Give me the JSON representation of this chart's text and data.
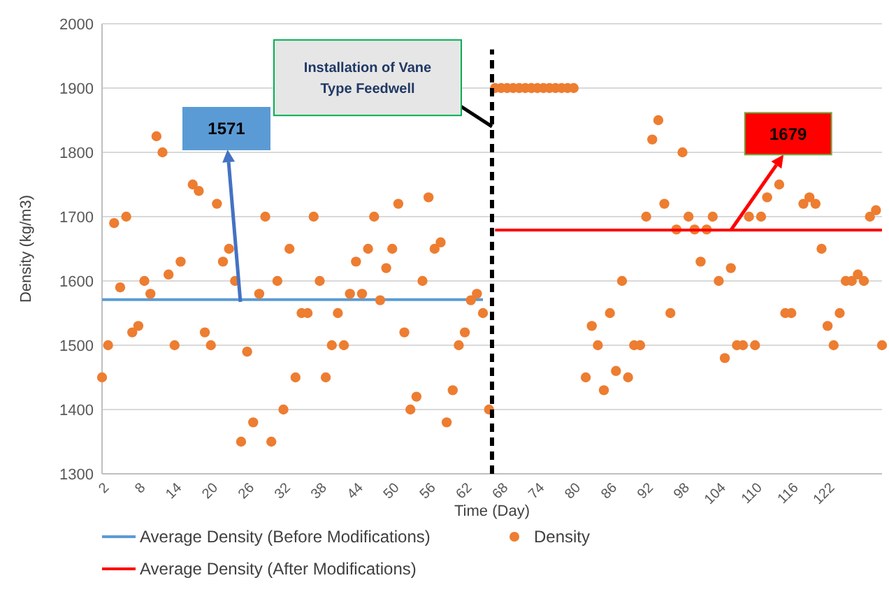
{
  "chart_data": {
    "type": "scatter",
    "xlabel": "Time (Day)",
    "ylabel": "Density (kg/m3)",
    "xlim": [
      2,
      131
    ],
    "xticks": [
      2,
      8,
      14,
      20,
      26,
      32,
      38,
      44,
      50,
      56,
      62,
      68,
      74,
      80,
      86,
      92,
      98,
      104,
      110,
      116,
      122
    ],
    "ylim": [
      1300,
      2000
    ],
    "yticks": [
      1300,
      1400,
      1500,
      1600,
      1700,
      1800,
      1900,
      2000
    ],
    "grid": "y",
    "legend": "bottom",
    "marker": "circle",
    "series": [
      {
        "name": "Average Density (Before Modifications)",
        "type": "line",
        "marker": "none",
        "color": "#5b9bd5",
        "x": [
          2,
          65
        ],
        "values": [
          1571,
          1571
        ]
      },
      {
        "name": "Density",
        "color": "#ed7d31",
        "x": [
          2,
          3,
          4,
          5,
          6,
          7,
          8,
          9,
          10,
          11,
          12,
          13,
          14,
          15,
          17,
          18,
          19,
          20,
          21,
          22,
          23,
          24,
          25,
          26,
          27,
          28,
          29,
          30,
          31,
          32,
          33,
          34,
          35,
          36,
          37,
          38,
          39,
          40,
          41,
          42,
          43,
          44,
          45,
          46,
          47,
          48,
          49,
          50,
          51,
          52,
          53,
          54,
          55,
          56,
          57,
          58,
          59,
          60,
          61,
          62,
          63,
          64,
          65,
          66,
          67,
          68,
          69,
          70,
          71,
          72,
          73,
          74,
          75,
          76,
          77,
          78,
          79,
          80,
          82,
          83,
          84,
          85,
          86,
          87,
          88,
          89,
          90,
          91,
          92,
          93,
          94,
          95,
          96,
          97,
          98,
          99,
          100,
          101,
          102,
          103,
          104,
          105,
          106,
          107,
          108,
          109,
          110,
          111,
          112,
          114,
          115,
          116,
          118,
          119,
          120,
          121,
          122,
          123,
          124,
          125,
          126,
          127,
          128,
          129,
          130,
          131
        ],
        "values": [
          1450,
          1500,
          1690,
          1590,
          1700,
          1520,
          1530,
          1600,
          1580,
          1825,
          1800,
          1610,
          1500,
          1630,
          1750,
          1740,
          1520,
          1500,
          1720,
          1630,
          1650,
          1600,
          1350,
          1490,
          1380,
          1580,
          1700,
          1350,
          1600,
          1400,
          1650,
          1450,
          1550,
          1550,
          1700,
          1600,
          1450,
          1500,
          1550,
          1500,
          1580,
          1630,
          1580,
          1650,
          1700,
          1570,
          1620,
          1650,
          1720,
          1520,
          1400,
          1420,
          1600,
          1730,
          1650,
          1660,
          1380,
          1430,
          1500,
          1520,
          1570,
          1580,
          1550,
          1400,
          1900,
          1900,
          1900,
          1900,
          1900,
          1900,
          1900,
          1900,
          1900,
          1900,
          1900,
          1900,
          1900,
          1900,
          1450,
          1530,
          1500,
          1430,
          1550,
          1460,
          1600,
          1450,
          1500,
          1500,
          1700,
          1820,
          1850,
          1720,
          1550,
          1680,
          1800,
          1700,
          1680,
          1630,
          1680,
          1700,
          1600,
          1480,
          1620,
          1500,
          1500,
          1700,
          1500,
          1700,
          1730,
          1750,
          1550,
          1550,
          1720,
          1730,
          1720,
          1650,
          1530,
          1500,
          1550,
          1600,
          1600,
          1610,
          1600,
          1700,
          1710,
          1500
        ]
      },
      {
        "name": "Average Density (After Modifications)",
        "type": "line",
        "marker": "none",
        "color": "#ff0000",
        "x": [
          67,
          131
        ],
        "values": [
          1679,
          1679
        ]
      }
    ],
    "ref_lines": [
      {
        "axis": "x",
        "value": 66.5,
        "color": "#000000",
        "line_style": "dashed"
      }
    ],
    "annotations": [
      "1571",
      {
        "text": "1679",
        "x": 106,
        "y": 1679
      },
      {
        "text": "Installation of Vane Type Feedwell",
        "x": 66.5,
        "y": 1840
      }
    ]
  }
}
